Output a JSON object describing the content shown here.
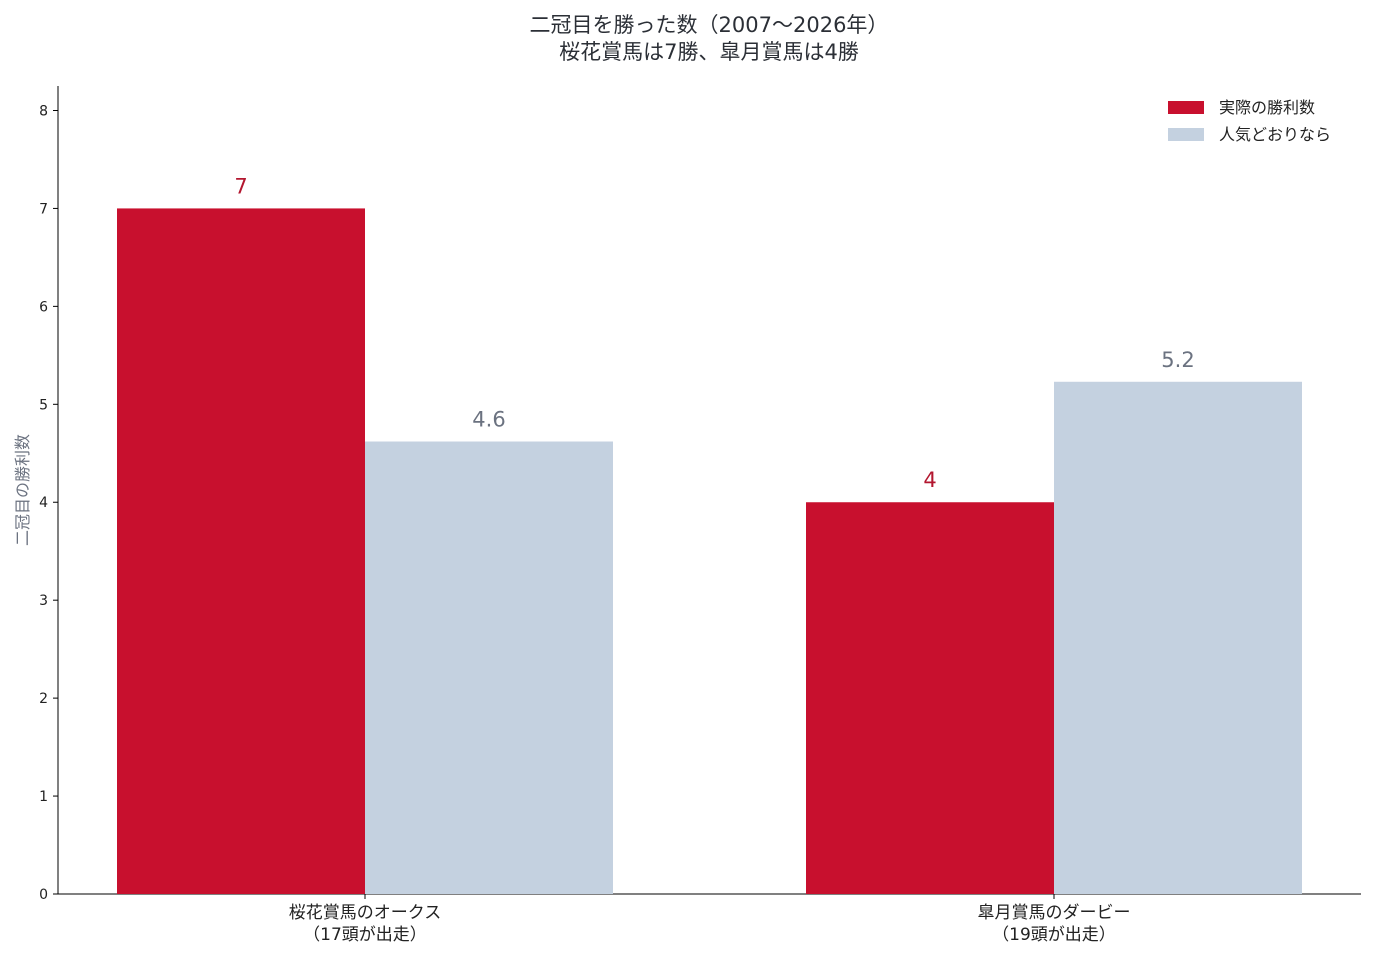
{
  "chart_data": {
    "type": "bar",
    "title_lines": [
      "二冠目を勝った数（2007〜2026年）",
      "桜花賞馬は7勝、皐月賞馬は4勝"
    ],
    "ylabel": "二冠目の勝利数",
    "xlabel": "",
    "ylim": [
      0,
      8.25
    ],
    "yticks": [
      0,
      1,
      2,
      3,
      4,
      5,
      6,
      7,
      8
    ],
    "grid": false,
    "legend_position": "top-right",
    "categories": [
      [
        "桜花賞馬のオークス",
        "（17頭が出走）"
      ],
      [
        "皐月賞馬のダービー",
        "（19頭が出走）"
      ]
    ],
    "series": [
      {
        "name": "実際の勝利数",
        "color": "#c8102e",
        "label_color": "#b3162f",
        "values": [
          7,
          4
        ],
        "labels": [
          "7",
          "4"
        ]
      },
      {
        "name": "人気どおりなら",
        "color": "#c4d1e0",
        "label_color": "#6b7280",
        "values": [
          4.62,
          5.23
        ],
        "labels": [
          "4.6",
          "5.2"
        ]
      }
    ]
  }
}
